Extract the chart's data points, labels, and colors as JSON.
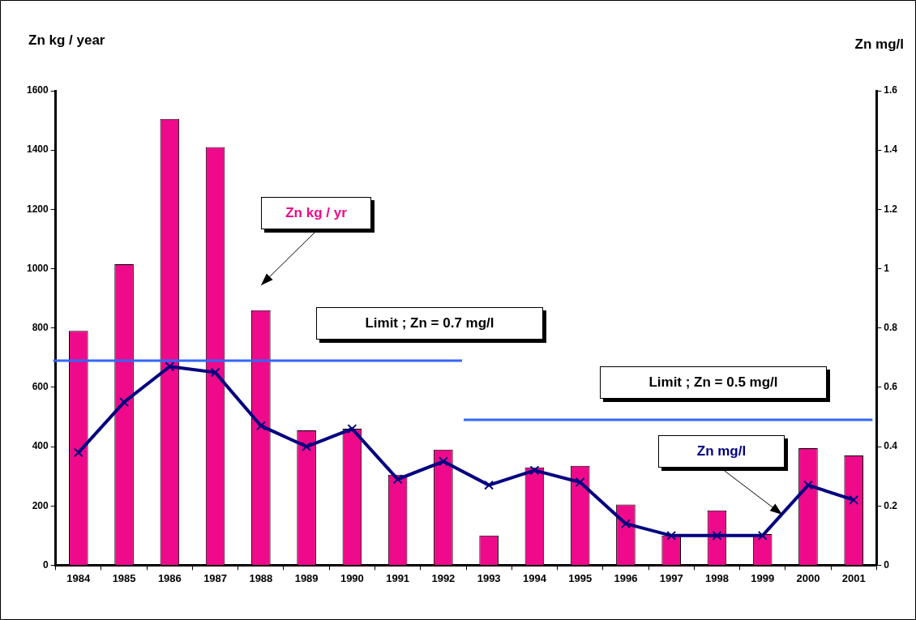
{
  "chart_data": {
    "type": "bar",
    "ylabel": "Zn kg / year",
    "y2label": "Zn mg/l",
    "categories": [
      "1984",
      "1985",
      "1986",
      "1987",
      "1988",
      "1989",
      "1990",
      "1991",
      "1992",
      "1993",
      "1994",
      "1995",
      "1996",
      "1997",
      "1998",
      "1999",
      "2000",
      "2001"
    ],
    "series": [
      {
        "name": "Zn kg / yr",
        "color": "#ee0a8a",
        "values": [
          790,
          1015,
          1505,
          1410,
          860,
          455,
          460,
          305,
          390,
          100,
          330,
          335,
          205,
          100,
          185,
          105,
          395,
          370
        ]
      },
      {
        "name": "Zn mg/l",
        "type": "line",
        "axis": "y2",
        "color": "#000080",
        "marker": "cross",
        "values": [
          0.38,
          0.55,
          0.67,
          0.65,
          0.47,
          0.4,
          0.46,
          0.29,
          0.35,
          0.27,
          0.32,
          0.28,
          0.14,
          0.1,
          0.1,
          0.1,
          0.27,
          0.22
        ]
      }
    ],
    "ylim": [
      0,
      1600
    ],
    "yticks": [
      0,
      200,
      400,
      600,
      800,
      1000,
      1200,
      1400,
      1600
    ],
    "y2lim": [
      0,
      1.6
    ],
    "y2ticks": [
      0,
      0.2,
      0.4,
      0.6,
      0.8,
      1,
      1.2,
      1.4,
      1.6
    ],
    "ref_lines": [
      {
        "axis": "y2",
        "value": 0.69,
        "label": "Limit ; Zn = 0.7 mg/l",
        "color": "#3366ff"
      },
      {
        "axis": "y2",
        "value": 0.49,
        "label": "Limit ; Zn = 0.5 mg/l",
        "color": "#3366ff"
      }
    ],
    "grid": false,
    "legend": false
  }
}
